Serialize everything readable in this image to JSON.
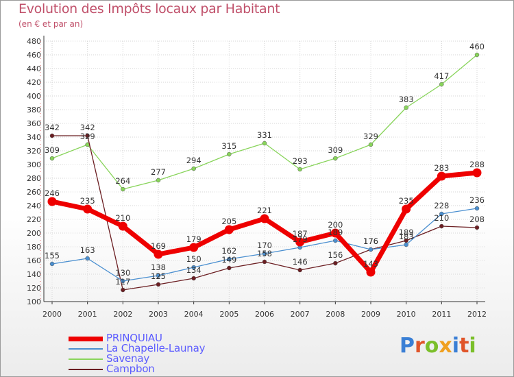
{
  "chart_data": {
    "type": "line",
    "title": "Evolution des Impôts locaux par Habitant",
    "subtitle": "(en € et par an)",
    "xlabel": "",
    "ylabel": "",
    "ylim": [
      100,
      480
    ],
    "ytick_step": 20,
    "x": [
      "2000",
      "2001",
      "2002",
      "2003",
      "2004",
      "2005",
      "2006",
      "2007",
      "2008",
      "2009",
      "2010",
      "2011",
      "2012"
    ],
    "grid": true,
    "legend_position": "bottom-left",
    "series": [
      {
        "name": "PRINQUIAU",
        "color": "#ee0000",
        "values": [
          246,
          235,
          210,
          169,
          179,
          205,
          221,
          187,
          200,
          143,
          235,
          283,
          288
        ]
      },
      {
        "name": "La Chapelle-Launay",
        "color": "#4a8fd0",
        "values": [
          155,
          163,
          130,
          138,
          150,
          162,
          170,
          179,
          189,
          176,
          183,
          228,
          236
        ]
      },
      {
        "name": "Savenay",
        "color": "#88d45a",
        "values": [
          309,
          329,
          264,
          277,
          294,
          315,
          331,
          293,
          309,
          329,
          383,
          417,
          460
        ]
      },
      {
        "name": "Campbon",
        "color": "#6b1e22",
        "values": [
          342,
          342,
          117,
          125,
          134,
          149,
          158,
          146,
          156,
          176,
          189,
          210,
          208
        ]
      }
    ]
  },
  "logo": {
    "text": "Proxiti"
  }
}
